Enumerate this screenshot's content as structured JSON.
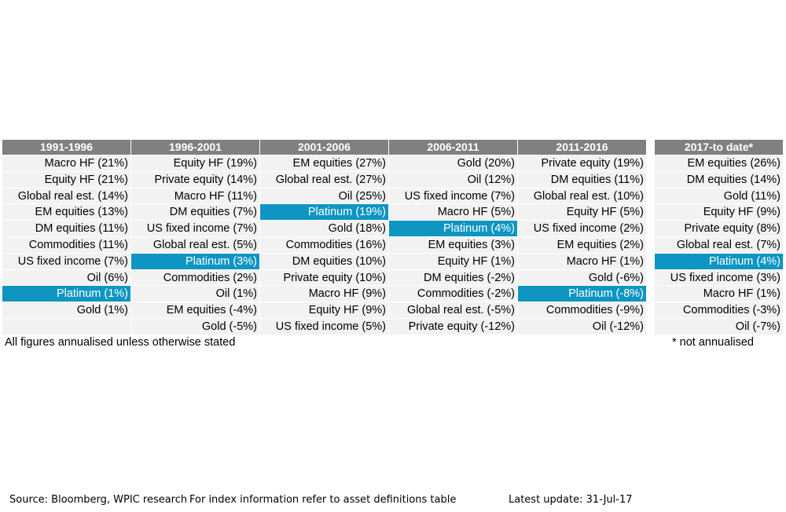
{
  "chart_data": {
    "type": "table",
    "columns": [
      {
        "header": "1991-1996",
        "rows": [
          {
            "text": "Macro HF (21%)",
            "asset": "Macro HF",
            "value": 21
          },
          {
            "text": "Equity HF (21%)",
            "asset": "Equity HF",
            "value": 21
          },
          {
            "text": "Global real est. (14%)",
            "asset": "Global real est.",
            "value": 14
          },
          {
            "text": "EM equities (13%)",
            "asset": "EM equities",
            "value": 13
          },
          {
            "text": "DM equities (11%)",
            "asset": "DM equities",
            "value": 11
          },
          {
            "text": "Commodities (11%)",
            "asset": "Commodities",
            "value": 11
          },
          {
            "text": "US fixed income (7%)",
            "asset": "US fixed income",
            "value": 7
          },
          {
            "text": "Oil (6%)",
            "asset": "Oil",
            "value": 6
          },
          {
            "text": "Platinum (1%)",
            "asset": "Platinum",
            "value": 1
          },
          {
            "text": "Gold (1%)",
            "asset": "Gold",
            "value": 1
          },
          {
            "text": "",
            "asset": "",
            "value": null
          }
        ]
      },
      {
        "header": "1996-2001",
        "rows": [
          {
            "text": "Equity HF (19%)",
            "asset": "Equity HF",
            "value": 19
          },
          {
            "text": "Private equity (14%)",
            "asset": "Private equity",
            "value": 14
          },
          {
            "text": "Macro HF (11%)",
            "asset": "Macro HF",
            "value": 11
          },
          {
            "text": "DM equities (7%)",
            "asset": "DM equities",
            "value": 7
          },
          {
            "text": "US fixed income (7%)",
            "asset": "US fixed income",
            "value": 7
          },
          {
            "text": "Global real est. (5%)",
            "asset": "Global real est.",
            "value": 5
          },
          {
            "text": "Platinum (3%)",
            "asset": "Platinum",
            "value": 3
          },
          {
            "text": "Commodities (2%)",
            "asset": "Commodities",
            "value": 2
          },
          {
            "text": "Oil (1%)",
            "asset": "Oil",
            "value": 1
          },
          {
            "text": "EM equities (-4%)",
            "asset": "EM equities",
            "value": -4
          },
          {
            "text": "Gold (-5%)",
            "asset": "Gold",
            "value": -5
          }
        ]
      },
      {
        "header": "2001-2006",
        "rows": [
          {
            "text": "EM equities (27%)",
            "asset": "EM equities",
            "value": 27
          },
          {
            "text": "Global real est. (27%)",
            "asset": "Global real est.",
            "value": 27
          },
          {
            "text": "Oil (25%)",
            "asset": "Oil",
            "value": 25
          },
          {
            "text": "Platinum (19%)",
            "asset": "Platinum",
            "value": 19
          },
          {
            "text": "Gold (18%)",
            "asset": "Gold",
            "value": 18
          },
          {
            "text": "Commodities (16%)",
            "asset": "Commodities",
            "value": 16
          },
          {
            "text": "DM equities (10%)",
            "asset": "DM equities",
            "value": 10
          },
          {
            "text": "Private equity (10%)",
            "asset": "Private equity",
            "value": 10
          },
          {
            "text": "Macro HF (9%)",
            "asset": "Macro HF",
            "value": 9
          },
          {
            "text": "Equity HF (9%)",
            "asset": "Equity HF",
            "value": 9
          },
          {
            "text": "US fixed income (5%)",
            "asset": "US fixed income",
            "value": 5
          }
        ]
      },
      {
        "header": "2006-2011",
        "rows": [
          {
            "text": "Gold (20%)",
            "asset": "Gold",
            "value": 20
          },
          {
            "text": "Oil (12%)",
            "asset": "Oil",
            "value": 12
          },
          {
            "text": "US fixed income (7%)",
            "asset": "US fixed income",
            "value": 7
          },
          {
            "text": "Macro HF (5%)",
            "asset": "Macro HF",
            "value": 5
          },
          {
            "text": "Platinum (4%)",
            "asset": "Platinum",
            "value": 4
          },
          {
            "text": "EM equities (3%)",
            "asset": "EM equities",
            "value": 3
          },
          {
            "text": "Equity HF (1%)",
            "asset": "Equity HF",
            "value": 1
          },
          {
            "text": "DM equities (-2%)",
            "asset": "DM equities",
            "value": -2
          },
          {
            "text": "Commodities (-2%)",
            "asset": "Commodities",
            "value": -2
          },
          {
            "text": "Global real est. (-5%)",
            "asset": "Global real est.",
            "value": -5
          },
          {
            "text": "Private equity (-12%)",
            "asset": "Private equity",
            "value": -12
          }
        ]
      },
      {
        "header": "2011-2016",
        "rows": [
          {
            "text": "Private equity (19%)",
            "asset": "Private equity",
            "value": 19
          },
          {
            "text": "DM equities (11%)",
            "asset": "DM equities",
            "value": 11
          },
          {
            "text": "Global real est. (10%)",
            "asset": "Global real est.",
            "value": 10
          },
          {
            "text": "Equity HF (5%)",
            "asset": "Equity HF",
            "value": 5
          },
          {
            "text": "US fixed income (2%)",
            "asset": "US fixed income",
            "value": 2
          },
          {
            "text": "EM equities (2%)",
            "asset": "EM equities",
            "value": 2
          },
          {
            "text": "Macro HF (1%)",
            "asset": "Macro HF",
            "value": 1
          },
          {
            "text": "Gold (-6%)",
            "asset": "Gold",
            "value": -6
          },
          {
            "text": "Platinum (-8%)",
            "asset": "Platinum",
            "value": -8
          },
          {
            "text": "Commodities (-9%)",
            "asset": "Commodities",
            "value": -9
          },
          {
            "text": "Oil (-12%)",
            "asset": "Oil",
            "value": -12
          }
        ]
      },
      {
        "header": "2017-to date*",
        "rows": [
          {
            "text": "EM equities (26%)",
            "asset": "EM equities",
            "value": 26
          },
          {
            "text": "DM equities (14%)",
            "asset": "DM equities",
            "value": 14
          },
          {
            "text": "Gold (11%)",
            "asset": "Gold",
            "value": 11
          },
          {
            "text": "Equity HF (9%)",
            "asset": "Equity HF",
            "value": 9
          },
          {
            "text": "Private equity (8%)",
            "asset": "Private equity",
            "value": 8
          },
          {
            "text": "Global real est. (7%)",
            "asset": "Global real est.",
            "value": 7
          },
          {
            "text": "Platinum (4%)",
            "asset": "Platinum",
            "value": 4
          },
          {
            "text": "US fixed income (3%)",
            "asset": "US fixed income",
            "value": 3
          },
          {
            "text": "Macro HF (1%)",
            "asset": "Macro HF",
            "value": 1
          },
          {
            "text": "Commodities (-3%)",
            "asset": "Commodities",
            "value": -3
          },
          {
            "text": "Oil (-7%)",
            "asset": "Oil",
            "value": -7
          }
        ]
      }
    ],
    "highlight_asset": "Platinum",
    "colors": {
      "header_bg": "#808080",
      "cell_bg": "#f2f2f2",
      "highlight_bg": "#0e95c2"
    }
  },
  "notes": {
    "annualised": "All figures annualised unless otherwise stated",
    "not_annualised": "* not annualised"
  },
  "footer": {
    "source": "Source: Bloomberg, WPIC research",
    "index_info": "For index information refer to asset definitions table",
    "latest_update": "Latest update: 31-Jul-17"
  }
}
